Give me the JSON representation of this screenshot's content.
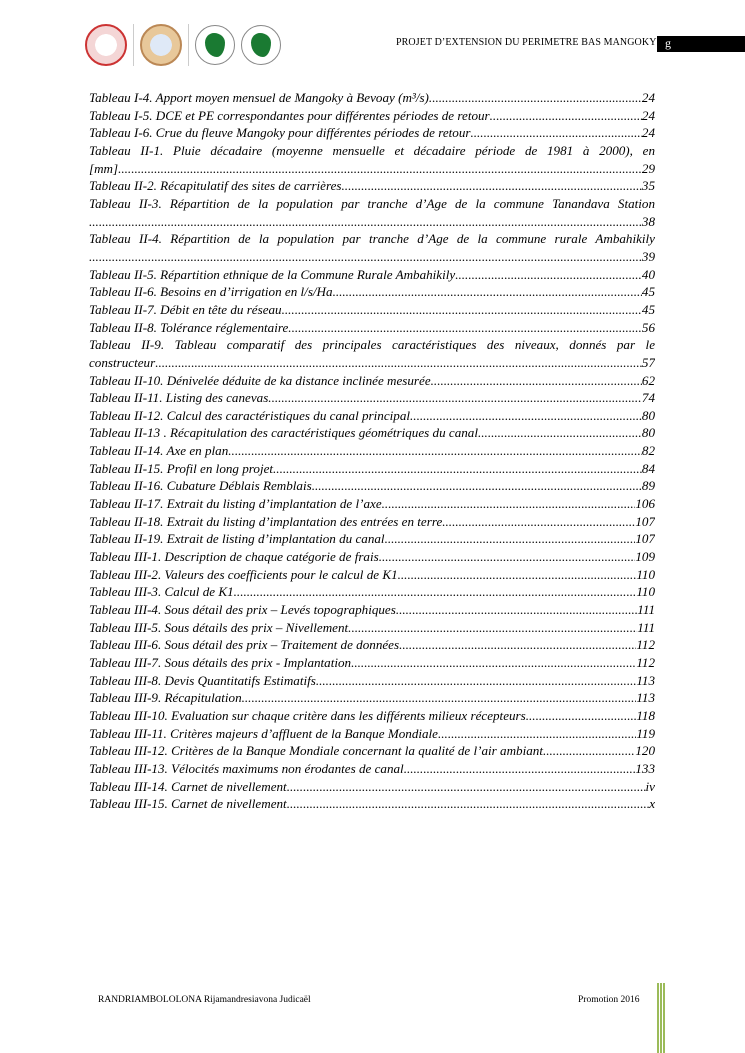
{
  "header": {
    "title": "PROJET D’EXTENSION DU PERIMETRE BAS MANGOKY",
    "box_text": "g"
  },
  "toc": [
    {
      "title": "Tableau I-4. Apport moyen mensuel de Mangoky à Bevoay (m³/s)",
      "page": "24"
    },
    {
      "title": "Tableau I-5. DCE et PE correspondantes pour différentes périodes de retour",
      "page": "24"
    },
    {
      "title": "Tableau I-6. Crue du fleuve Mangoky pour différentes périodes de retour",
      "page": "24"
    },
    {
      "title": "Tableau II-1. Pluie décadaire (moyenne mensuelle et décadaire période de 1981 à 2000), en",
      "title_cont": "[mm]",
      "page": "29"
    },
    {
      "title": "Tableau II-2. Récapitulatif des sites de carrières",
      "page": "35"
    },
    {
      "title": "Tableau II-3. Répartition de la population par tranche d’Age de la commune Tanandava Station",
      "title_cont": "",
      "page": "38"
    },
    {
      "title": "Tableau II-4. Répartition de la population par tranche d’Age de la commune rurale Ambahikily",
      "title_cont": "",
      "page": "39"
    },
    {
      "title": "Tableau II-5. Répartition ethnique de la Commune Rurale Ambahikily",
      "page": "40"
    },
    {
      "title": "Tableau II-6. Besoins en d’irrigation en l/s/Ha",
      "page": "45"
    },
    {
      "title": "Tableau II-7. Débit en tête du réseau",
      "page": "45"
    },
    {
      "title": "Tableau II-8. Tolérance réglementaire",
      "page": "56"
    },
    {
      "title": "Tableau II-9. Tableau comparatif des principales caractéristiques des niveaux, donnés par le",
      "title_cont": "constructeur",
      "page": "57"
    },
    {
      "title": "Tableau II-10. Dénivelée déduite de ka distance inclinée mesurée",
      "page": "62"
    },
    {
      "title": "Tableau II-11. Listing des canevas",
      "page": "74"
    },
    {
      "title": "Tableau II-12. Calcul des caractéristiques du canal principal",
      "page": "80"
    },
    {
      "title": "Tableau II-13 . Récapitulation des caractéristiques géométriques du canal",
      "page": "80"
    },
    {
      "title": "Tableau II-14. Axe en plan",
      "page": "82"
    },
    {
      "title": "Tableau II-15. Profil en long projet",
      "page": "84"
    },
    {
      "title": "Tableau II-16. Cubature Déblais Remblais",
      "page": "89"
    },
    {
      "title": "Tableau II-17. Extrait du listing d’implantation de l’axe",
      "page": "106"
    },
    {
      "title": "Tableau II-18. Extrait du listing d’implantation des entrées en terre",
      "page": "107"
    },
    {
      "title": "Tableau II-19. Extrait de listing d’implantation du canal",
      "page": "107"
    },
    {
      "title": "Tableau III-1. Description de chaque catégorie de frais",
      "page": "109"
    },
    {
      "title": "Tableau III-2. Valeurs des coefficients pour le calcul de K1",
      "page": "110"
    },
    {
      "title": "Tableau III-3. Calcul de K1",
      "page": "110"
    },
    {
      "title": "Tableau III-4. Sous détail des prix – Levés topographiques",
      "page": "111"
    },
    {
      "title": "Tableau III-5. Sous détails des prix – Nivellement",
      "page": "111"
    },
    {
      "title": "Tableau III-6. Sous détail des prix – Traitement de données",
      "page": "112"
    },
    {
      "title": "Tableau III-7. Sous détails des prix - Implantation",
      "page": "112"
    },
    {
      "title": "Tableau III-8. Devis Quantitatifs Estimatifs",
      "page": "113"
    },
    {
      "title": "Tableau III-9. Récapitulation",
      "page": "113"
    },
    {
      "title": "Tableau III-10. Evaluation sur chaque critère dans les différents milieux récepteurs",
      "page": "118"
    },
    {
      "title": "Tableau III-11. Critères majeurs d’affluent de la Banque Mondiale",
      "page": "119"
    },
    {
      "title": "Tableau III-12. Critères de la Banque Mondiale concernant la qualité de l’air ambiant",
      "page": "120"
    },
    {
      "title": "Tableau III-13. Vélocités maximums non érodantes de canal",
      "page": "133"
    },
    {
      "title": "Tableau III-14. Carnet de nivellement",
      "page": "iv"
    },
    {
      "title": "Tableau III-15. Carnet de nivellement",
      "page": "x"
    }
  ],
  "footer": {
    "author": "RANDRIAMBOLOLONA Rijamandresiavona Judicaël",
    "promotion": "Promotion 2016"
  },
  "colors": {
    "accent_lines": "#9bbb59",
    "logo_green": "#1a7a32"
  }
}
